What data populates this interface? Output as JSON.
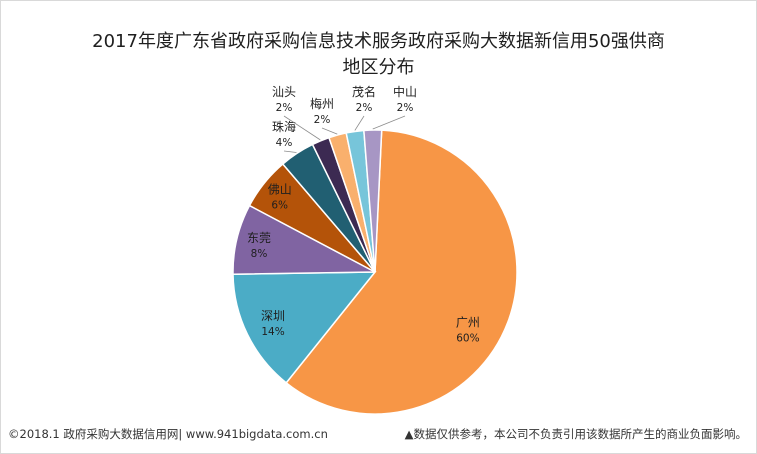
{
  "chart_data": {
    "type": "pie",
    "title_line1": "2017年度广东省政府采购信息技术服务政府采购大数据新信用50强供商",
    "title_line2": "地区分布",
    "slices": [
      {
        "label": "广州",
        "value": 60,
        "display": "60%",
        "color": "#f79646"
      },
      {
        "label": "深圳",
        "value": 14,
        "display": "14%",
        "color": "#4bacc6"
      },
      {
        "label": "东莞",
        "value": 8,
        "display": "8%",
        "color": "#8064a2"
      },
      {
        "label": "佛山",
        "value": 6,
        "display": "6%",
        "color": "#b45309"
      },
      {
        "label": "珠海",
        "value": 4,
        "display": "4%",
        "color": "#215f72"
      },
      {
        "label": "汕头",
        "value": 2,
        "display": "2%",
        "color": "#3c2a52"
      },
      {
        "label": "梅州",
        "value": 2,
        "display": "2%",
        "color": "#f9b06d"
      },
      {
        "label": "茂名",
        "value": 2,
        "display": "2%",
        "color": "#77c5da"
      },
      {
        "label": "中山",
        "value": 2,
        "display": "2%",
        "color": "#a796c4"
      }
    ]
  },
  "footer": {
    "left": "©2018.1 政府采购大数据信用网| www.941bigdata.com.cn",
    "right": "▲数据仅供参考，本公司不负责引用该数据所产生的商业负面影响。"
  }
}
